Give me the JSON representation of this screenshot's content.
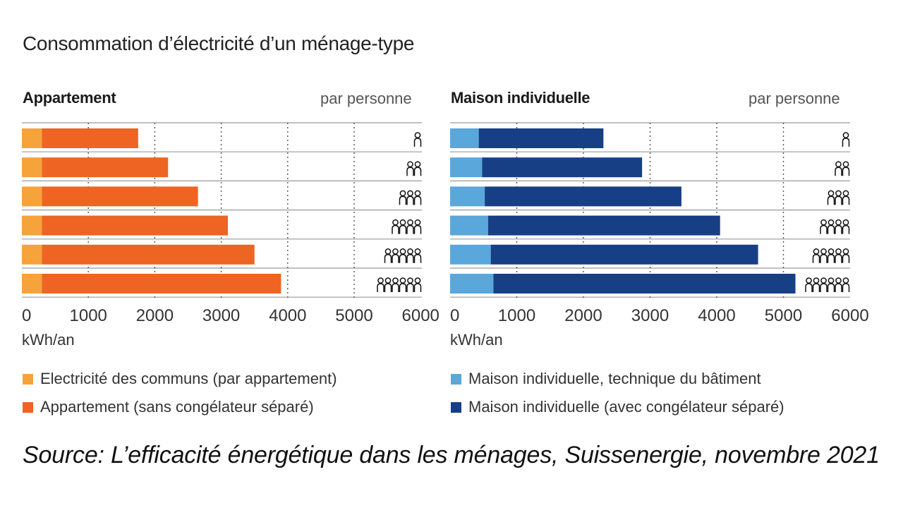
{
  "title": "Consommation d’électricité d’un ménage-type",
  "source": "Source: L’efficacité énergétique dans les ménages, Suissenergie, novembre 2021",
  "chart_data": [
    {
      "type": "bar",
      "orientation": "horizontal",
      "stacked": true,
      "title": "Appartement",
      "subtitle": "par personne",
      "unit": "kWh/an",
      "categories": [
        "1",
        "2",
        "3",
        "4",
        "5",
        "6"
      ],
      "category_icon": "person-icon",
      "xlim": [
        0,
        6000
      ],
      "xticks": [
        0,
        1000,
        2000,
        3000,
        4000,
        5000,
        6000
      ],
      "grid": "dotted vertical",
      "series": [
        {
          "name": "Electricité des communs (par appartement)",
          "color": "#f5a33a",
          "values": [
            300,
            300,
            300,
            300,
            300,
            300
          ]
        },
        {
          "name": "Appartement (sans congélateur séparé)",
          "color": "#ee6423",
          "values": [
            1450,
            1900,
            2350,
            2800,
            3200,
            3600
          ]
        }
      ]
    },
    {
      "type": "bar",
      "orientation": "horizontal",
      "stacked": true,
      "title": "Maison individuelle",
      "subtitle": "par personne",
      "unit": "kWh/an",
      "categories": [
        "1",
        "2",
        "3",
        "4",
        "5",
        "6"
      ],
      "category_icon": "person-icon",
      "xlim": [
        0,
        6000
      ],
      "xticks": [
        0,
        1000,
        2000,
        3000,
        4000,
        5000,
        6000
      ],
      "grid": "dotted vertical",
      "series": [
        {
          "name": "Maison individuelle, technique du bâtiment",
          "color": "#5aa7dc",
          "values": [
            430,
            480,
            520,
            570,
            610,
            650
          ]
        },
        {
          "name": "Maison individuelle (avec congélateur séparé)",
          "color": "#173f85",
          "values": [
            1870,
            2400,
            2950,
            3480,
            4010,
            4530
          ]
        }
      ]
    }
  ]
}
